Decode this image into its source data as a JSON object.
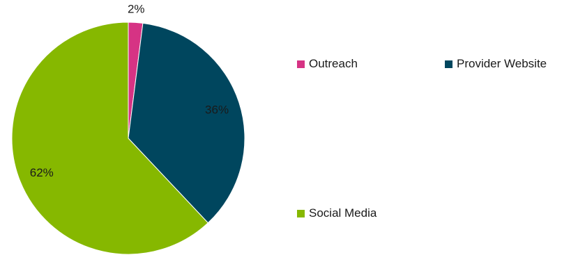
{
  "chart_data": {
    "type": "pie",
    "title": "",
    "categories": [
      "Outreach",
      "Provider Website",
      "Social Media"
    ],
    "values": [
      2,
      36,
      62
    ],
    "data_labels": [
      "2%",
      "36%",
      "62%"
    ],
    "colors": [
      "#d63384",
      "#00465e",
      "#86b800"
    ],
    "legend": {
      "placement": "right",
      "entries": [
        "Outreach",
        "Provider Website",
        "Social Media"
      ]
    }
  }
}
